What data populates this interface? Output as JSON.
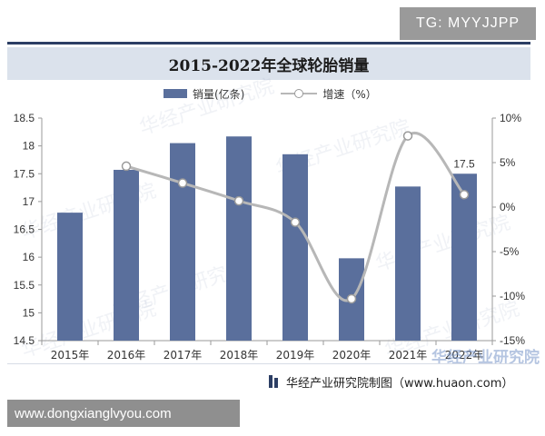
{
  "badges": {
    "top_right": "TG: MYYJJPP",
    "bottom_left": "www.dongxianglvyou.com"
  },
  "watermark": {
    "text": "华经产业研究院",
    "corner_text": "华经产业研究院"
  },
  "source": {
    "text": "华经产业研究院制图（www.huaon.com）"
  },
  "colors": {
    "bar": "#5a6f9c",
    "line": "#b7b7b7",
    "marker_stroke": "#9a9a9a",
    "title_bar": "#dbe2ec",
    "header_rule": "#2c3e64"
  },
  "chart_data": {
    "type": "bar",
    "title": "2015-2022年全球轮胎销量",
    "categories": [
      "2015年",
      "2016年",
      "2017年",
      "2018年",
      "2019年",
      "2020年",
      "2021年",
      "2022年"
    ],
    "series": [
      {
        "name": "销量(亿条)",
        "type": "bar",
        "axis": "left",
        "values": [
          16.8,
          17.57,
          18.05,
          18.17,
          17.85,
          15.98,
          17.27,
          17.5
        ]
      },
      {
        "name": "增速（%）",
        "type": "line",
        "axis": "right",
        "smooth": true,
        "marker": "hollow-circle",
        "values": [
          null,
          4.6,
          2.7,
          0.7,
          -1.7,
          -10.3,
          8.0,
          1.4
        ]
      }
    ],
    "data_labels": [
      {
        "series": 0,
        "index": 7,
        "text": "17.5"
      }
    ],
    "y_left": {
      "lim": [
        14.5,
        18.5
      ],
      "ticks": [
        "14.5",
        "15",
        "15.5",
        "16",
        "16.5",
        "17",
        "17.5",
        "18",
        "18.5"
      ]
    },
    "y_right": {
      "lim": [
        -15,
        10
      ],
      "ticks": [
        "-15%",
        "-10%",
        "-5%",
        "0%",
        "5%",
        "10%"
      ]
    },
    "legend_position": "top-center",
    "grid": false
  }
}
